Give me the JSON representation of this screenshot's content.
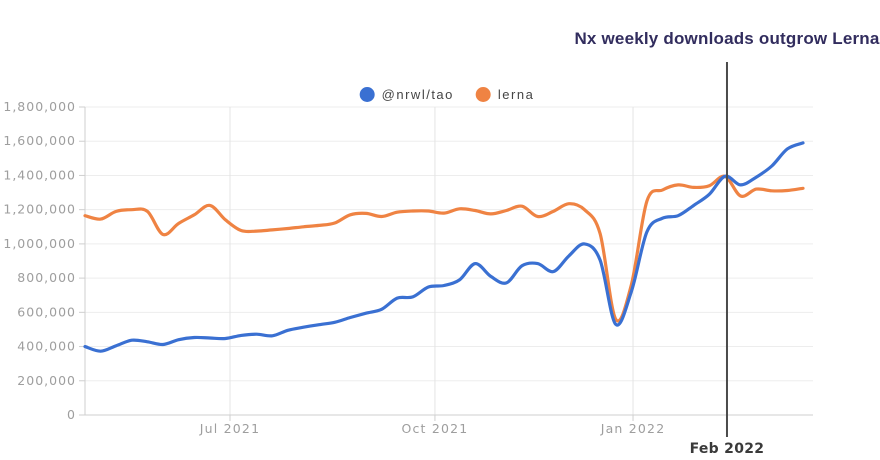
{
  "title": {
    "text": "Nx weekly downloads outgrow Lerna",
    "color": "#322d5e"
  },
  "legend": {
    "items": [
      {
        "label": "@nrwl/tao",
        "color": "#3a70d2"
      },
      {
        "label": "lerna",
        "color": "#ef8343"
      }
    ]
  },
  "chart_data": {
    "type": "line",
    "title": "Nx weekly downloads outgrow Lerna",
    "grid": true,
    "legend_position": "top-center",
    "ylim": [
      0,
      1800000
    ],
    "y_axis": {
      "ticks": [
        {
          "value": 0,
          "label": "0"
        },
        {
          "value": 200000,
          "label": "200,000"
        },
        {
          "value": 400000,
          "label": "400,000"
        },
        {
          "value": 600000,
          "label": "600,000"
        },
        {
          "value": 800000,
          "label": "800,000"
        },
        {
          "value": 1000000,
          "label": "1,000,000"
        },
        {
          "value": 1200000,
          "label": "1,200,000"
        },
        {
          "value": 1400000,
          "label": "1,400,000"
        },
        {
          "value": 1600000,
          "label": "1,600,000"
        },
        {
          "value": 1800000,
          "label": "1,800,000"
        }
      ]
    },
    "x_axis": {
      "ticks": [
        {
          "label": "Jul 2021",
          "week": 9.29
        },
        {
          "label": "Oct 2021",
          "week": 22.42
        },
        {
          "label": "Jan 2022",
          "week": 35.11
        }
      ]
    },
    "annotation": {
      "label": "Feb 2022",
      "week": 41.13
    },
    "weeks": [
      "2021-04-26",
      "2021-05-03",
      "2021-05-10",
      "2021-05-17",
      "2021-05-24",
      "2021-05-31",
      "2021-06-07",
      "2021-06-14",
      "2021-06-21",
      "2021-06-28",
      "2021-07-05",
      "2021-07-12",
      "2021-07-19",
      "2021-07-26",
      "2021-08-02",
      "2021-08-09",
      "2021-08-16",
      "2021-08-23",
      "2021-08-30",
      "2021-09-06",
      "2021-09-13",
      "2021-09-20",
      "2021-09-27",
      "2021-10-04",
      "2021-10-11",
      "2021-10-18",
      "2021-10-25",
      "2021-11-01",
      "2021-11-08",
      "2021-11-15",
      "2021-11-22",
      "2021-11-29",
      "2021-12-06",
      "2021-12-13",
      "2021-12-20",
      "2021-12-27",
      "2022-01-03",
      "2022-01-10",
      "2022-01-17",
      "2022-01-24",
      "2022-01-31",
      "2022-02-07",
      "2022-02-14",
      "2022-02-21",
      "2022-02-28",
      "2022-03-07",
      "2022-03-14"
    ],
    "series": [
      {
        "id": "nrwl-tao",
        "name": "@nrwl/tao",
        "color": "#3a70d2",
        "values": [
          400000,
          373000,
          405000,
          437000,
          428000,
          412000,
          440000,
          453000,
          450000,
          447000,
          465000,
          472000,
          463000,
          495000,
          513000,
          528000,
          542000,
          570000,
          595000,
          618000,
          683000,
          690000,
          748000,
          757000,
          790000,
          885000,
          810000,
          772000,
          872000,
          885000,
          838000,
          930000,
          1000000,
          905000,
          530000,
          720000,
          1070000,
          1150000,
          1165000,
          1225000,
          1290000,
          1395000,
          1345000,
          1390000,
          1455000,
          1555000,
          1590000
        ]
      },
      {
        "id": "lerna",
        "name": "lerna",
        "color": "#ef8343",
        "values": [
          1165000,
          1145000,
          1190000,
          1200000,
          1190000,
          1055000,
          1120000,
          1170000,
          1225000,
          1140000,
          1078000,
          1075000,
          1082000,
          1090000,
          1100000,
          1108000,
          1122000,
          1170000,
          1178000,
          1160000,
          1185000,
          1192000,
          1192000,
          1180000,
          1205000,
          1195000,
          1175000,
          1195000,
          1220000,
          1160000,
          1190000,
          1235000,
          1200000,
          1060000,
          560000,
          760000,
          1250000,
          1315000,
          1345000,
          1330000,
          1340000,
          1395000,
          1280000,
          1320000,
          1310000,
          1312000,
          1325000
        ]
      }
    ],
    "style": {
      "grid": "#ededed",
      "vgrid": "#e4e4e4",
      "axis": "#cfcfcf",
      "tick_text": "#9e9e9e",
      "annotation_line": "#4b4b4b",
      "annotation_text": "#3a3a3a"
    }
  }
}
